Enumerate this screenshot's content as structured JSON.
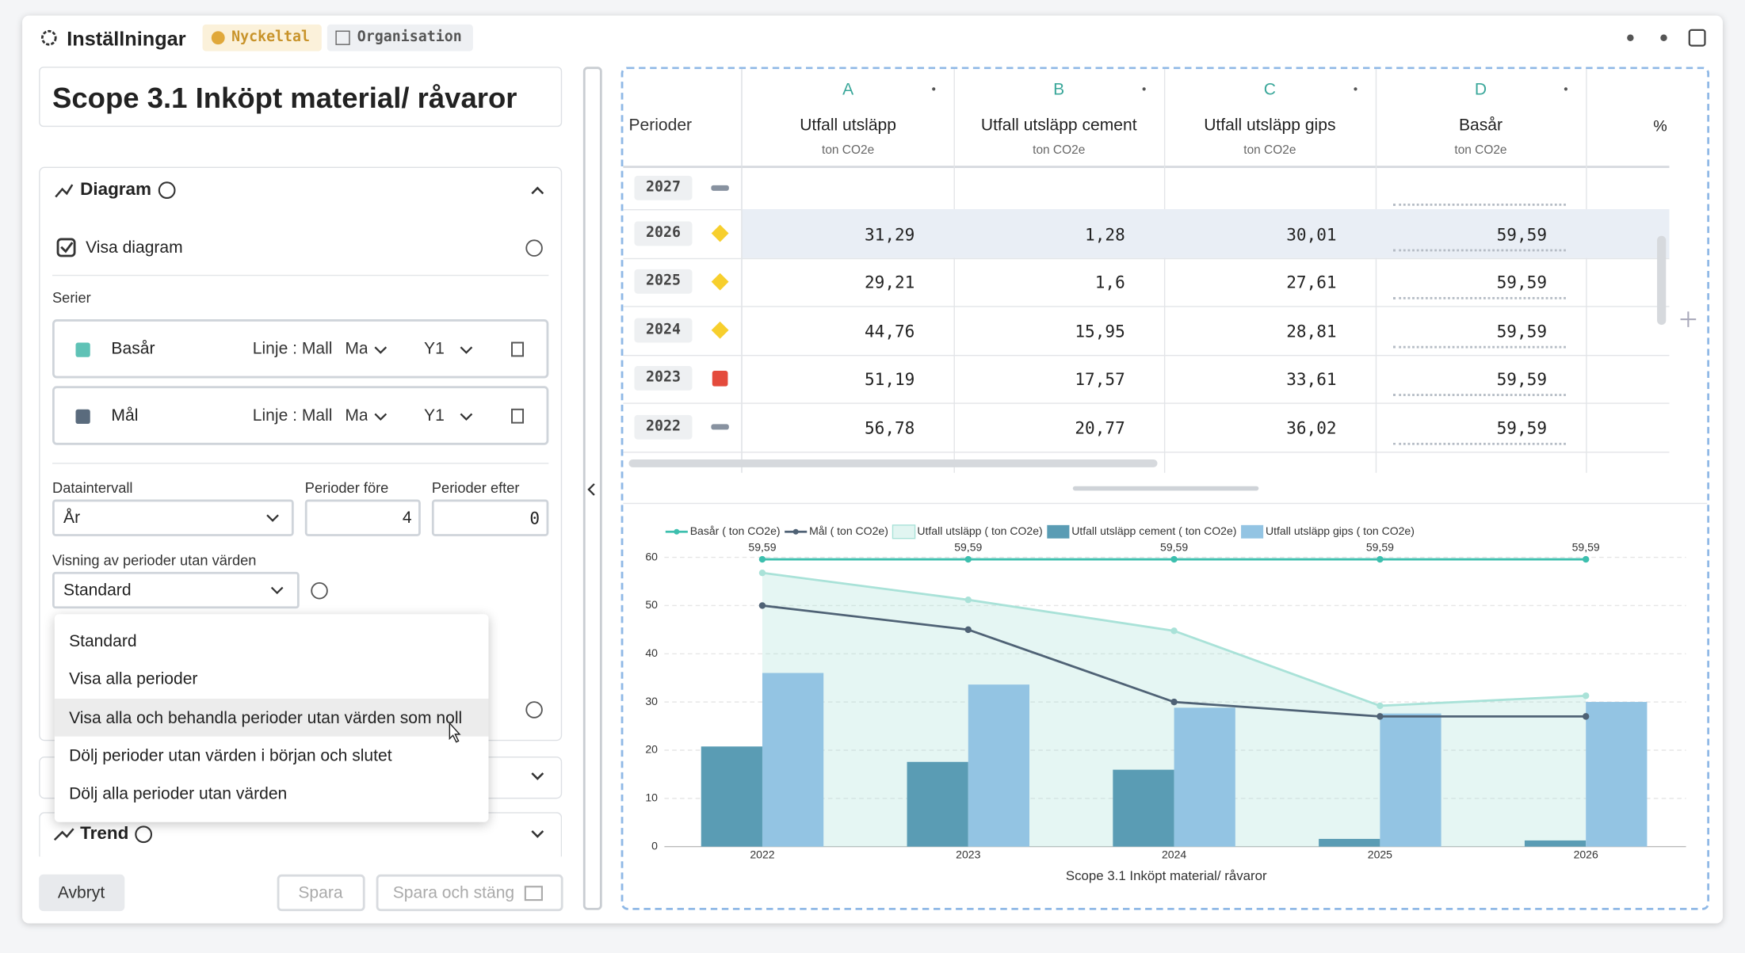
{
  "header": {
    "title": "Inställningar",
    "tabs": [
      "Nyckeltal",
      "Organisation"
    ]
  },
  "left": {
    "name": "Scope 3.1 Inköpt material/ råvaror",
    "diagram": {
      "title": "Diagram",
      "show_chart": "Visa diagram",
      "series_label": "Serier",
      "series": [
        {
          "name": "Basår",
          "type": "Linje : Mall",
          "type_suffix": "Ma",
          "axis": "Y1",
          "color": "#5fc2b6"
        },
        {
          "name": "Mål",
          "type": "Linje : Mall",
          "type_suffix": "Ma",
          "axis": "Y1",
          "color": "#5a6b7d"
        }
      ],
      "data_interval_label": "Dataintervall",
      "data_interval": "År",
      "periods_before_label": "Perioder före",
      "periods_before": "4",
      "periods_after_label": "Perioder efter",
      "periods_after": "0",
      "empty_periods_label": "Visning av perioder utan värden",
      "empty_periods": "Standard",
      "dropdown_options": [
        "Standard",
        "Visa alla perioder",
        "Visa alla och behandla perioder utan värden som noll",
        "Dölj perioder utan värden i början och slutet",
        "Dölj alla perioder utan värden"
      ]
    },
    "trend": "Trend",
    "buttons": {
      "cancel": "Avbryt",
      "save": "Spara",
      "save_close": "Spara och stäng"
    }
  },
  "table": {
    "period_header": "Perioder",
    "columns": [
      {
        "letter": "A",
        "name": "Utfall utsläpp",
        "unit": "ton CO2e"
      },
      {
        "letter": "B",
        "name": "Utfall utsläpp cement",
        "unit": "ton CO2e"
      },
      {
        "letter": "C",
        "name": "Utfall utsläpp gips",
        "unit": "ton CO2e"
      },
      {
        "letter": "D",
        "name": "Basår",
        "unit": "ton CO2e"
      }
    ],
    "extra_column": "%",
    "rows": [
      {
        "period": "2027",
        "status": "dash",
        "cells": []
      },
      {
        "period": "2026",
        "status": "diamond",
        "cells": [
          "31,29",
          "1,28",
          "30,01",
          "59,59"
        ]
      },
      {
        "period": "2025",
        "status": "diamond",
        "cells": [
          "29,21",
          "1,6",
          "27,61",
          "59,59"
        ]
      },
      {
        "period": "2024",
        "status": "diamond",
        "cells": [
          "44,76",
          "15,95",
          "28,81",
          "59,59"
        ]
      },
      {
        "period": "2023",
        "status": "square",
        "cells": [
          "51,19",
          "17,57",
          "33,61",
          "59,59"
        ]
      },
      {
        "period": "2022",
        "status": "dash",
        "cells": [
          "56,78",
          "20,77",
          "36,02",
          "59,59"
        ]
      }
    ]
  },
  "chart_data": {
    "type": "combo",
    "xlabel": "Scope 3.1 Inköpt material/ råvaror",
    "categories": [
      "2022",
      "2023",
      "2024",
      "2025",
      "2026"
    ],
    "ylim": [
      0,
      60
    ],
    "yticks": [
      0,
      10,
      20,
      30,
      40,
      50,
      60
    ],
    "grid": true,
    "series": [
      {
        "name": "Basår ( ton CO2e)",
        "type": "line",
        "color": "#3dbfae",
        "values": [
          59.59,
          59.59,
          59.59,
          59.59,
          59.59
        ],
        "value_labels": [
          "59,59",
          "59,59",
          "59,59",
          "59,59",
          "59,59"
        ]
      },
      {
        "name": "Mål ( ton CO2e)",
        "type": "line",
        "color": "#4f6275",
        "values": [
          50,
          45,
          30,
          27,
          27
        ]
      },
      {
        "name": "Utfall utsläpp ( ton CO2e)",
        "type": "area",
        "color": "#a9e2d8",
        "values": [
          56.78,
          51.19,
          44.76,
          29.21,
          31.29
        ]
      },
      {
        "name": "Utfall utsläpp cement ( ton CO2e)",
        "type": "bar",
        "color": "#5a9cb4",
        "values": [
          20.77,
          17.57,
          15.95,
          1.6,
          1.28
        ]
      },
      {
        "name": "Utfall utsläpp gips ( ton CO2e)",
        "type": "bar",
        "color": "#93c4e3",
        "values": [
          36.02,
          33.61,
          28.81,
          27.61,
          30.01
        ]
      }
    ]
  }
}
